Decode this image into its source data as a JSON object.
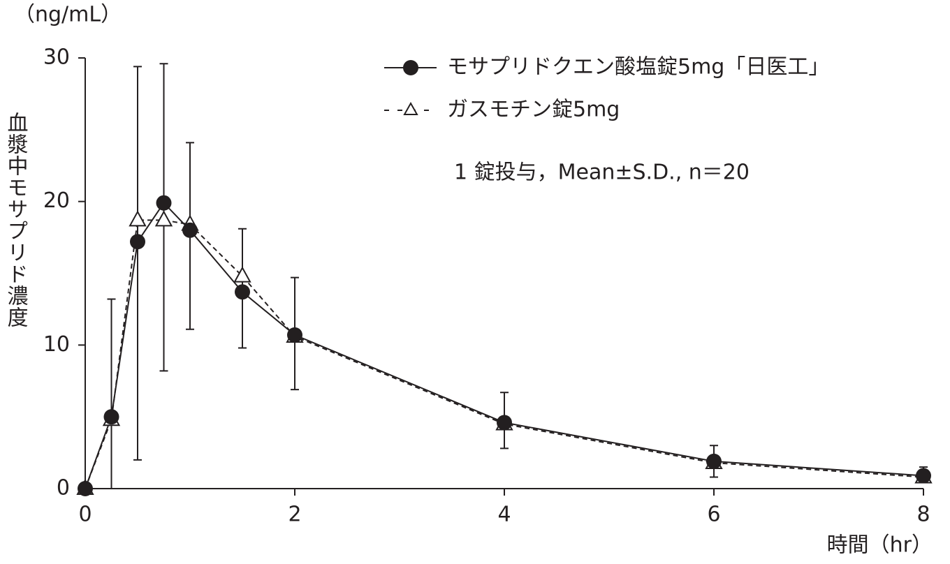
{
  "chart_data": {
    "type": "line",
    "unit_label": "（ng/mL）",
    "y_label": "血漿中モサプリド濃度",
    "x_label": "時間（hr）",
    "annotation": "1 錠投与，Mean±S.D., n＝20",
    "x": [
      0,
      0.25,
      0.5,
      0.75,
      1,
      1.5,
      2,
      4,
      6,
      8
    ],
    "series": [
      {
        "name": "モサプリドクエン酸塩錠5mg「日医工」",
        "color": "#231f20",
        "marker": "circle",
        "dash": false,
        "values": [
          0,
          5.0,
          17.2,
          19.9,
          18.0,
          13.7,
          10.7,
          4.6,
          1.9,
          0.9
        ],
        "error_high": [
          null,
          8.2,
          12.2,
          9.7,
          6.1,
          4.4,
          4.0,
          2.1,
          1.1,
          0.6
        ],
        "error_low": [
          null,
          5.0,
          15.2,
          11.7,
          6.9,
          3.9,
          3.8,
          1.8,
          1.1,
          0.4
        ]
      },
      {
        "name": "ガスモチン錠5mg",
        "color": "#231f20",
        "marker": "triangle",
        "dash": true,
        "values": [
          0,
          4.8,
          18.7,
          18.7,
          18.4,
          14.8,
          10.6,
          4.5,
          1.8,
          0.8
        ]
      }
    ],
    "xlim": [
      0,
      8
    ],
    "xticks": [
      0,
      2,
      4,
      6,
      8
    ],
    "ylim": [
      0,
      30
    ],
    "yticks": [
      0,
      10,
      20,
      30
    ]
  }
}
